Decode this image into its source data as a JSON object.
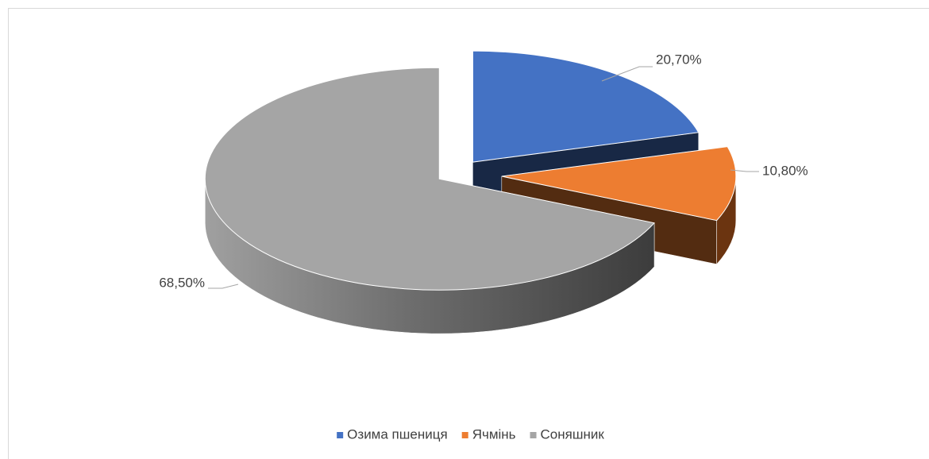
{
  "chart_data": {
    "type": "pie3d",
    "categories": [
      "Озима пшениця",
      "Ячмінь",
      "Соняшник"
    ],
    "values": [
      20.7,
      10.8,
      68.5
    ],
    "value_labels": [
      "20,70%",
      "10,80%",
      "68,50%"
    ],
    "colors": [
      "#4472c4",
      "#ed7d31",
      "#a5a5a5"
    ],
    "legend": "bottom"
  }
}
